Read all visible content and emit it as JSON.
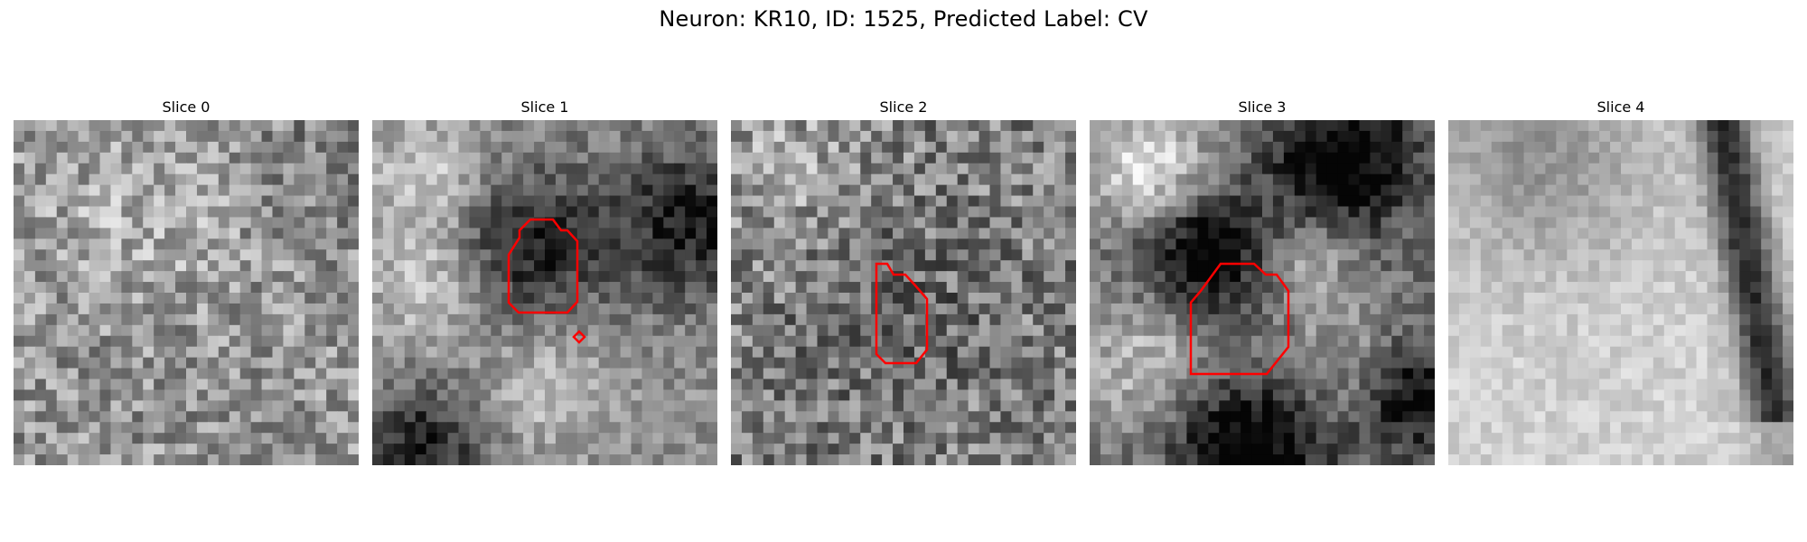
{
  "figure": {
    "title": "Neuron: KR10, ID: 1525, Predicted Label: CV"
  },
  "colors": {
    "contour": "#ff0000",
    "colormap": "gray"
  },
  "panels": [
    {
      "title": "Slice 0",
      "texture": "fine-noise-mid-gray",
      "has_contour": false
    },
    {
      "title": "Slice 1",
      "texture": "blobs-with-dark-center",
      "has_contour": true
    },
    {
      "title": "Slice 2",
      "texture": "fine-noise-mid-gray",
      "has_contour": true
    },
    {
      "title": "Slice 3",
      "texture": "high-contrast-blobs",
      "has_contour": true
    },
    {
      "title": "Slice 4",
      "texture": "light-with-dark-right-band",
      "has_contour": false
    }
  ]
}
